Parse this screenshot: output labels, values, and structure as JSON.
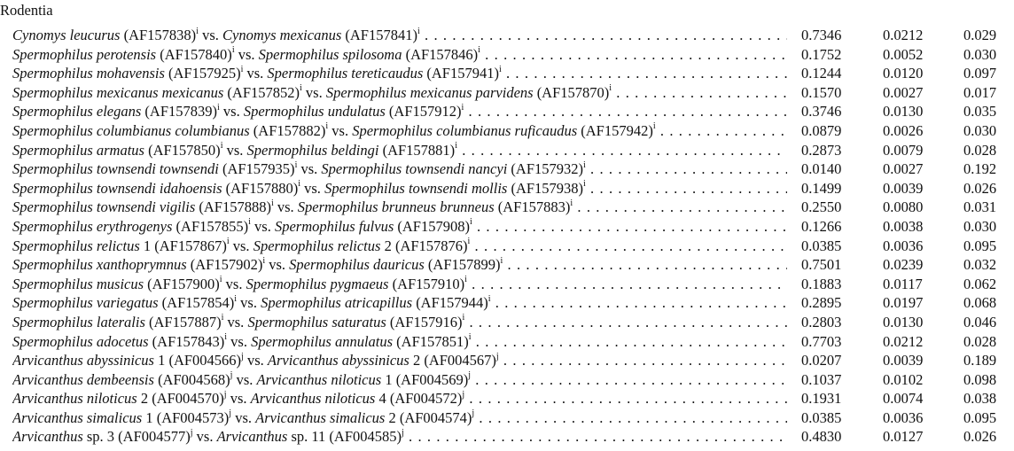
{
  "section_title": "Rodentia",
  "rows": [
    {
      "a_name": "Cynomys leucurus",
      "a_suffix": "",
      "a_acc": "(AF157838)",
      "a_sup": "i",
      "b_name": "Cynomys mexicanus",
      "b_suffix": "",
      "b_acc": "(AF157841)",
      "b_sup": "i",
      "v1": "0.7346",
      "v2": "0.0212",
      "v3": "0.029"
    },
    {
      "a_name": "Spermophilus perotensis",
      "a_suffix": "",
      "a_acc": "(AF157840)",
      "a_sup": "i",
      "b_name": "Spermophilus spilosoma",
      "b_suffix": "",
      "b_acc": "(AF157846)",
      "b_sup": "i",
      "v1": "0.1752",
      "v2": "0.0052",
      "v3": "0.030"
    },
    {
      "a_name": "Spermophilus mohavensis",
      "a_suffix": "",
      "a_acc": "(AF157925)",
      "a_sup": "i",
      "b_name": "Spermophilus tereticaudus",
      "b_suffix": "",
      "b_acc": "(AF157941)",
      "b_sup": "i",
      "v1": "0.1244",
      "v2": "0.0120",
      "v3": "0.097"
    },
    {
      "a_name": "Spermophilus mexicanus mexicanus",
      "a_suffix": "",
      "a_acc": "(AF157852)",
      "a_sup": "i",
      "b_name": "Spermophilus mexicanus parvidens",
      "b_suffix": "",
      "b_acc": "(AF157870)",
      "b_sup": "i",
      "v1": "0.1570",
      "v2": "0.0027",
      "v3": "0.017"
    },
    {
      "a_name": "Spermophilus elegans",
      "a_suffix": "",
      "a_acc": "(AF157839)",
      "a_sup": "i",
      "b_name": "Spermophilus undulatus",
      "b_suffix": "",
      "b_acc": "(AF157912)",
      "b_sup": "i",
      "v1": "0.3746",
      "v2": "0.0130",
      "v3": "0.035"
    },
    {
      "a_name": "Spermophilus columbianus columbianus",
      "a_suffix": "",
      "a_acc": "(AF157882)",
      "a_sup": "i",
      "b_name": "Spermophilus columbianus ruficaudus",
      "b_suffix": "",
      "b_acc": "(AF157942)",
      "b_sup": "i",
      "v1": "0.0879",
      "v2": "0.0026",
      "v3": "0.030"
    },
    {
      "a_name": "Spermophilus armatus",
      "a_suffix": "",
      "a_acc": "(AF157850)",
      "a_sup": "i",
      "b_name": "Spermophilus beldingi",
      "b_suffix": "",
      "b_acc": "(AF157881)",
      "b_sup": "i",
      "v1": "0.2873",
      "v2": "0.0079",
      "v3": "0.028"
    },
    {
      "a_name": "Spermophilus townsendi townsendi",
      "a_suffix": "",
      "a_acc": "(AF157935)",
      "a_sup": "i",
      "b_name": "Spermophilus townsendi nancyi",
      "b_suffix": "",
      "b_acc": "(AF157932)",
      "b_sup": "i",
      "v1": "0.0140",
      "v2": "0.0027",
      "v3": "0.192"
    },
    {
      "a_name": "Spermophilus townsendi idahoensis",
      "a_suffix": "",
      "a_acc": "(AF157880)",
      "a_sup": "i",
      "b_name": "Spermophilus townsendi mollis",
      "b_suffix": "",
      "b_acc": "(AF157938)",
      "b_sup": "i",
      "v1": "0.1499",
      "v2": "0.0039",
      "v3": "0.026"
    },
    {
      "a_name": "Spermophilus townsendi vigilis",
      "a_suffix": "",
      "a_acc": "(AF157888)",
      "a_sup": "i",
      "b_name": "Spermophilus brunneus brunneus",
      "b_suffix": "",
      "b_acc": "(AF157883)",
      "b_sup": "i",
      "v1": "0.2550",
      "v2": "0.0080",
      "v3": "0.031"
    },
    {
      "a_name": "Spermophilus erythrogenys",
      "a_suffix": "",
      "a_acc": "(AF157855)",
      "a_sup": "i",
      "b_name": "Spermophilus fulvus",
      "b_suffix": "",
      "b_acc": "(AF157908)",
      "b_sup": "i",
      "v1": "0.1266",
      "v2": "0.0038",
      "v3": "0.030"
    },
    {
      "a_name": "Spermophilus relictus",
      "a_suffix": " 1",
      "a_acc": "(AF157867)",
      "a_sup": "i",
      "b_name": "Spermophilus relictus",
      "b_suffix": " 2",
      "b_acc": "(AF157876)",
      "b_sup": "i",
      "v1": "0.0385",
      "v2": "0.0036",
      "v3": "0.095"
    },
    {
      "a_name": "Spermophilus xanthoprymnus",
      "a_suffix": "",
      "a_acc": "(AF157902)",
      "a_sup": "i",
      "b_name": "Spermophilus dauricus",
      "b_suffix": "",
      "b_acc": "(AF157899)",
      "b_sup": "i",
      "v1": "0.7501",
      "v2": "0.0239",
      "v3": "0.032"
    },
    {
      "a_name": "Spermophilus musicus",
      "a_suffix": "",
      "a_acc": "(AF157900)",
      "a_sup": "i",
      "b_name": "Spermophilus pygmaeus",
      "b_suffix": "",
      "b_acc": "(AF157910)",
      "b_sup": "i",
      "v1": "0.1883",
      "v2": "0.0117",
      "v3": "0.062"
    },
    {
      "a_name": "Spermophilus variegatus",
      "a_suffix": "",
      "a_acc": "(AF157854)",
      "a_sup": "i",
      "b_name": "Spermophilus atricapillus",
      "b_suffix": "",
      "b_acc": "(AF157944)",
      "b_sup": "i",
      "v1": "0.2895",
      "v2": "0.0197",
      "v3": "0.068"
    },
    {
      "a_name": "Spermophilus lateralis",
      "a_suffix": "",
      "a_acc": "(AF157887)",
      "a_sup": "i",
      "b_name": "Spermophilus saturatus",
      "b_suffix": "",
      "b_acc": "(AF157916)",
      "b_sup": "i",
      "v1": "0.2803",
      "v2": "0.0130",
      "v3": "0.046"
    },
    {
      "a_name": "Spermophilus adocetus",
      "a_suffix": "",
      "a_acc": "(AF157843)",
      "a_sup": "i",
      "b_name": "Spermophilus annulatus",
      "b_suffix": "",
      "b_acc": "(AF157851)",
      "b_sup": "i",
      "v1": "0.7703",
      "v2": "0.0212",
      "v3": "0.028"
    },
    {
      "a_name": "Arvicanthus abyssinicus",
      "a_suffix": " 1",
      "a_acc": "(AF004566)",
      "a_sup": "j",
      "b_name": "Arvicanthus abyssinicus",
      "b_suffix": " 2",
      "b_acc": "(AF004567)",
      "b_sup": "j",
      "v1": "0.0207",
      "v2": "0.0039",
      "v3": "0.189"
    },
    {
      "a_name": "Arvicanthus dembeensis",
      "a_suffix": "",
      "a_acc": "(AF004568)",
      "a_sup": "j",
      "b_name": "Arvicanthus niloticus",
      "b_suffix": " 1",
      "b_acc": "(AF004569)",
      "b_sup": "j",
      "v1": "0.1037",
      "v2": "0.0102",
      "v3": "0.098"
    },
    {
      "a_name": "Arvicanthus niloticus",
      "a_suffix": " 2",
      "a_acc": "(AF004570)",
      "a_sup": "j",
      "b_name": "Arvicanthus niloticus",
      "b_suffix": " 4",
      "b_acc": "(AF004572)",
      "b_sup": "j",
      "v1": "0.1931",
      "v2": "0.0074",
      "v3": "0.038"
    },
    {
      "a_name": "Arvicanthus simalicus",
      "a_suffix": " 1",
      "a_acc": "(AF004573)",
      "a_sup": "j",
      "b_name": "Arvicanthus simalicus",
      "b_suffix": " 2",
      "b_acc": "(AF004574)",
      "b_sup": "j",
      "v1": "0.0385",
      "v2": "0.0036",
      "v3": "0.095"
    },
    {
      "a_name": "Arvicanthus",
      "a_suffix": " sp. 3",
      "a_acc": "(AF004577)",
      "a_sup": "j",
      "b_name": "Arvicanthus",
      "b_suffix": " sp. 11",
      "b_acc": "(AF004585)",
      "b_sup": "j",
      "v1": "0.4830",
      "v2": "0.0127",
      "v3": "0.026"
    }
  ],
  "connector": "vs."
}
